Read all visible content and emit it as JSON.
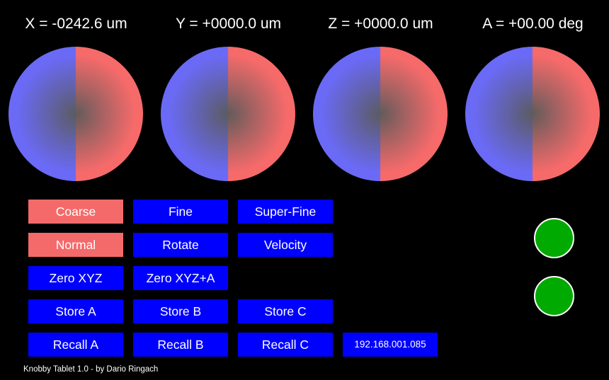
{
  "readouts": {
    "x": "X = -0242.6 um",
    "y": "Y = +0000.0 um",
    "z": "Z = +0000.0 um",
    "a": "A = +00.00 deg"
  },
  "knobs": [
    "x-knob",
    "y-knob",
    "z-knob",
    "a-knob"
  ],
  "buttons": {
    "coarse": "Coarse",
    "fine": "Fine",
    "super_fine": "Super-Fine",
    "normal": "Normal",
    "rotate": "Rotate",
    "velocity": "Velocity",
    "zero_xyz": "Zero XYZ",
    "zero_xyza": "Zero XYZ+A",
    "store_a": "Store A",
    "store_b": "Store B",
    "store_c": "Store C",
    "recall_a": "Recall A",
    "recall_b": "Recall B",
    "recall_c": "Recall C"
  },
  "ip_address": "192.168.001.085",
  "footer": "Knobby Tablet 1.0 - by Dario Ringach",
  "colors": {
    "background": "#000000",
    "button_blue": "#0000ff",
    "button_active": "#f46a6a",
    "knob_left": "#6a6af6",
    "knob_right": "#f66a6a",
    "status_green": "#00aa00"
  }
}
